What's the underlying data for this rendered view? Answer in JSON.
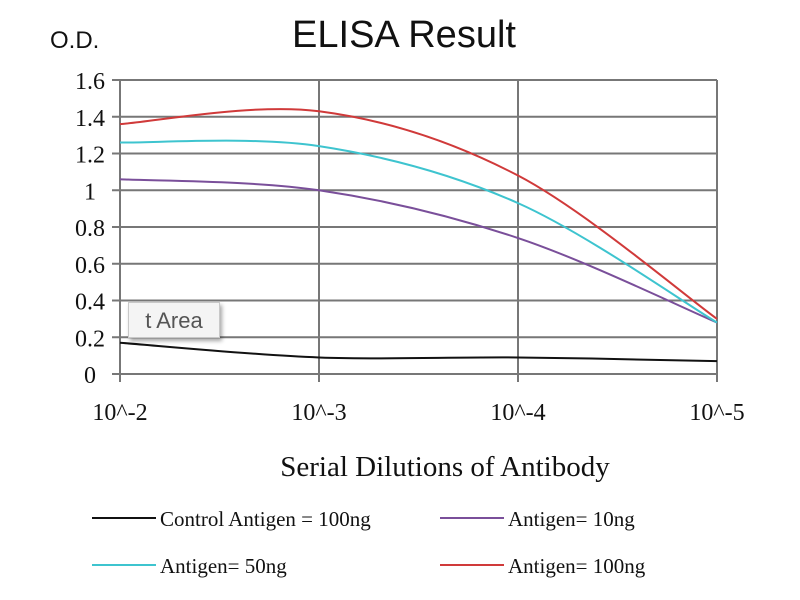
{
  "chart_data": {
    "type": "line",
    "title": "ELISA Result",
    "ylabel": "O.D.",
    "xlabel": "Serial Dilutions  of Antibody",
    "categories": [
      "10^-2",
      "10^-3",
      "10^-4",
      "10^-5"
    ],
    "ylim": [
      0,
      1.6
    ],
    "yticks": [
      "0",
      "0.2",
      "0.4",
      "0.6",
      "0.8",
      "1",
      "1.2",
      "1.4",
      "1.6"
    ],
    "grid": true,
    "legend_position": "bottom",
    "series": [
      {
        "name": "Control Antigen = 100ng",
        "color": "#111111",
        "values": [
          0.17,
          0.09,
          0.09,
          0.07
        ]
      },
      {
        "name": "Antigen= 10ng",
        "color": "#7a4f9a",
        "values": [
          1.06,
          1.0,
          0.74,
          0.28
        ]
      },
      {
        "name": "Antigen= 50ng",
        "color": "#3ec4cf",
        "values": [
          1.26,
          1.24,
          0.93,
          0.28
        ]
      },
      {
        "name": "Antigen= 100ng",
        "color": "#d03a3a",
        "values": [
          1.36,
          1.43,
          1.08,
          0.3
        ]
      }
    ]
  },
  "tooltip": {
    "text": "t Area"
  }
}
